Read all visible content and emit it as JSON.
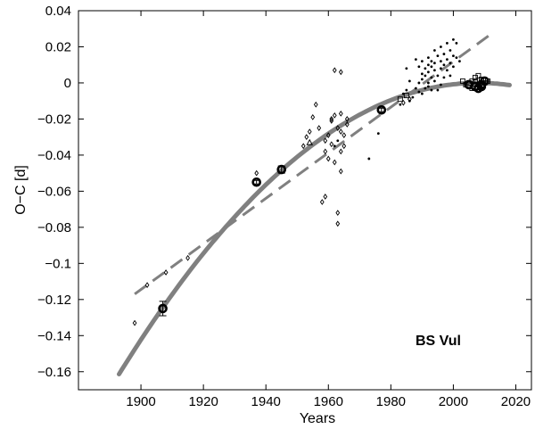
{
  "chart_data": {
    "type": "scatter",
    "xlabel": "Years",
    "ylabel": "O−C  [d]",
    "xlim": [
      1880,
      2025
    ],
    "ylim": [
      -0.17,
      0.04
    ],
    "grid": false,
    "xticks": [
      1900,
      1920,
      1940,
      1960,
      1980,
      2000,
      2020
    ],
    "yticks": [
      0.04,
      0.02,
      0,
      -0.02,
      -0.04,
      -0.06,
      -0.08,
      -0.1,
      -0.12,
      -0.14,
      -0.16
    ],
    "ytick_labels": [
      "0.04",
      "0.02",
      "0",
      "−0.02",
      "−0.04",
      "−0.06",
      "−0.08",
      "−0.1",
      "−0.12",
      "−0.14",
      "−0.16"
    ],
    "annotation": "BS Vul",
    "series": [
      {
        "marker": "dot",
        "points": [
          [
            1973,
            -0.042
          ],
          [
            1976,
            -0.028
          ],
          [
            1984,
            -0.006
          ],
          [
            1985,
            -0.004
          ],
          [
            1986,
            0.001
          ],
          [
            1987,
            -0.008
          ],
          [
            1988,
            -0.003
          ],
          [
            1988,
            0.013
          ],
          [
            1989,
            0.0
          ],
          [
            1989,
            -0.005
          ],
          [
            1990,
            0.002
          ],
          [
            1990,
            0.005
          ],
          [
            1990,
            0.012
          ],
          [
            1990,
            -0.006
          ],
          [
            1991,
            0.008
          ],
          [
            1991,
            0.004
          ],
          [
            1991,
            -0.003
          ],
          [
            1992,
            0.014
          ],
          [
            1992,
            0.01
          ],
          [
            1992,
            0.006
          ],
          [
            1992,
            -0.002
          ],
          [
            1992,
            0.0
          ],
          [
            1993,
            0.012
          ],
          [
            1993,
            0.009
          ],
          [
            1993,
            0.003
          ],
          [
            1993,
            -0.004
          ],
          [
            1994,
            0.018
          ],
          [
            1994,
            0.011
          ],
          [
            1994,
            0.007
          ],
          [
            1994,
            0.001
          ],
          [
            1995,
            0.015
          ],
          [
            1995,
            0.004
          ],
          [
            1995,
            -0.004
          ],
          [
            1996,
            0.02
          ],
          [
            1996,
            0.012
          ],
          [
            1996,
            0.008
          ],
          [
            1996,
            -0.001
          ],
          [
            1997,
            0.016
          ],
          [
            1997,
            0.01
          ],
          [
            1997,
            0.003
          ],
          [
            1998,
            0.022
          ],
          [
            1998,
            0.013
          ],
          [
            1998,
            0.007
          ],
          [
            1999,
            0.018
          ],
          [
            1999,
            0.011
          ],
          [
            1999,
            0.004
          ],
          [
            2000,
            0.024
          ],
          [
            2000,
            0.015
          ],
          [
            2000,
            0.009
          ],
          [
            2001,
            0.022
          ],
          [
            2001,
            0.014
          ],
          [
            2002,
            0.012
          ],
          [
            1962,
            -0.035
          ],
          [
            1963,
            -0.032
          ],
          [
            1983,
            -0.012
          ],
          [
            1985,
            0.008
          ],
          [
            1986,
            -0.01
          ],
          [
            1989,
            0.009
          ]
        ]
      },
      {
        "marker": "diamond",
        "points": [
          [
            1898,
            -0.133
          ],
          [
            1902,
            -0.112
          ],
          [
            1908,
            -0.105
          ],
          [
            1915,
            -0.097
          ],
          [
            1937,
            -0.05
          ],
          [
            1952,
            -0.035
          ],
          [
            1953,
            -0.03
          ],
          [
            1954,
            -0.027
          ],
          [
            1955,
            -0.019
          ],
          [
            1956,
            -0.012
          ],
          [
            1957,
            -0.025
          ],
          [
            1958,
            -0.066
          ],
          [
            1959,
            -0.063
          ],
          [
            1959,
            -0.038
          ],
          [
            1959,
            -0.032
          ],
          [
            1960,
            -0.042
          ],
          [
            1960,
            -0.029
          ],
          [
            1961,
            -0.021
          ],
          [
            1961,
            -0.02
          ],
          [
            1961,
            -0.034
          ],
          [
            1962,
            -0.018
          ],
          [
            1962,
            0.007
          ],
          [
            1962,
            -0.044
          ],
          [
            1963,
            -0.025
          ],
          [
            1963,
            -0.072
          ],
          [
            1963,
            -0.078
          ],
          [
            1964,
            0.006
          ],
          [
            1964,
            -0.027
          ],
          [
            1964,
            -0.038
          ],
          [
            1964,
            -0.049
          ],
          [
            1964,
            -0.017
          ],
          [
            1965,
            -0.029
          ],
          [
            1965,
            -0.035
          ],
          [
            1966,
            -0.02
          ],
          [
            1966,
            -0.023
          ],
          [
            1984,
            -0.011
          ],
          [
            1986,
            -0.009
          ]
        ]
      },
      {
        "marker": "triangle",
        "points": [
          [
            1954,
            -0.033
          ]
        ]
      },
      {
        "marker": "square",
        "points": [
          [
            1983,
            -0.009
          ],
          [
            1985,
            -0.007
          ],
          [
            2003,
            0.001
          ],
          [
            2004,
            -0.001
          ],
          [
            2005,
            0.0
          ],
          [
            2006,
            -0.003
          ],
          [
            2007,
            0.001
          ],
          [
            2007,
            0.003
          ],
          [
            2008,
            0.004
          ],
          [
            2008,
            -0.001
          ],
          [
            2009,
            0.002
          ],
          [
            2010,
            0.0
          ],
          [
            2011,
            0.001
          ],
          [
            2006,
            0.001
          ]
        ]
      },
      {
        "marker": "circle",
        "points": [
          [
            1907,
            -0.125
          ],
          [
            1937,
            -0.055
          ],
          [
            1945,
            -0.048
          ],
          [
            1977,
            -0.015
          ],
          [
            2005,
            -0.001
          ],
          [
            2007,
            -0.002
          ],
          [
            2008,
            -0.003
          ],
          [
            2009,
            -0.002
          ],
          [
            2010,
            0.001
          ],
          [
            2009,
            -0.001
          ]
        ],
        "errors": [
          0.004,
          0.001,
          0.002,
          0.001,
          0,
          0,
          0,
          0,
          0,
          0
        ]
      }
    ],
    "fits": [
      {
        "style": "solid",
        "kind": "quadratic",
        "x": [
          1893,
          2018
        ],
        "coefficients": {
          "x0": 2008,
          "a": -1.22e-05,
          "c": 0.0
        }
      },
      {
        "style": "dashed",
        "kind": "linear",
        "x": [
          1898,
          2012
        ],
        "y": [
          -0.117,
          0.027
        ]
      }
    ]
  }
}
